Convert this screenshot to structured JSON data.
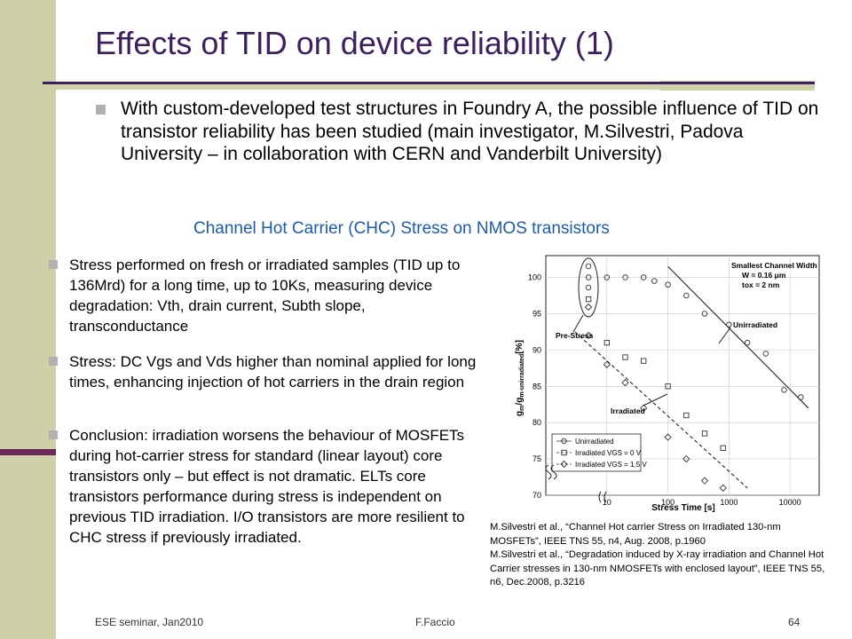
{
  "slide": {
    "title": "Effects of TID on device reliability (1)",
    "main_bullet": "With custom-developed test structures in Foundry A, the possible influence of TID on transistor reliability has been studied (main investigator, M.Silvestri, Padova University – in collaboration with CERN and Vanderbilt University)",
    "subheading": "Channel Hot Carrier (CHC) Stress on NMOS transistors",
    "points": [
      "Stress performed on fresh or irradiated samples (TID up to 136Mrd) for a long time, up to 10Ks, measuring device degradation: Vth, drain current, Subth slope, transconductance",
      "Stress: DC Vgs and Vds higher than nominal applied for long times, enhancing injection of hot carriers in the drain region",
      "Conclusion: irradiation worsens the behaviour of MOSFETs during hot-carrier stress for standard (linear layout) core transistors only – but effect is not dramatic. ELTs core transistors performance during stress is independent on previous TID irradiation. I/O transistors are more resilient to CHC stress if previously irradiated."
    ],
    "citation": [
      "M.Silvestri et al., “Channel Hot carrier Stress on Irradiated 130-nm MOSFETs”, IEEE TNS 55, n4, Aug. 2008, p.1960",
      "M.Silvestri et al., “Degradation induced by X-ray irradiation and Channel Hot Carrier stresses in 130-nm NMOSFETs with enclosed layout”, IEEE TNS 55, n6, Dec.2008, p.3216"
    ]
  },
  "footer": {
    "left": "ESE seminar, Jan2010",
    "center": "F.Faccio",
    "page": "64"
  },
  "chart_data": {
    "type": "scatter",
    "title": "",
    "xlabel": "Stress Time [s]",
    "ylabel": "gm/gm-unirradiated [%]",
    "xscale": "log",
    "xlim": [
      1,
      30000
    ],
    "ylim": [
      70,
      103
    ],
    "xticks": [
      "10",
      "100",
      "1000",
      "10000"
    ],
    "yticks": [
      "70",
      "75",
      "80",
      "85",
      "90",
      "95",
      "100"
    ],
    "info_box": [
      "Smallest Channel Width",
      "W = 0.16 μm",
      "tox = 2 nm"
    ],
    "annotations": [
      "Pre-Stress",
      "Unirradiated",
      "Irradiated"
    ],
    "legend": {
      "position": "bottom-left",
      "entries": [
        "Unirradiated",
        "Irradiated VGS = 0 V",
        "Irradiated VGS = 1.5 V"
      ]
    },
    "series": [
      {
        "name": "Unirradiated",
        "marker": "circle",
        "x": [
          5,
          10,
          20,
          40,
          60,
          100,
          200,
          400,
          1000,
          2000,
          4000,
          8000,
          15000
        ],
        "y": [
          100,
          100,
          100,
          100,
          99.5,
          99,
          97.5,
          95,
          93.5,
          91,
          89.5,
          84.5,
          83.5
        ]
      },
      {
        "name": "Irradiated VGS = 0 V",
        "marker": "square",
        "x": [
          5,
          10,
          20,
          40,
          100,
          200,
          400,
          800
        ],
        "y": [
          97,
          91,
          89,
          88.5,
          85,
          81,
          78.5,
          76.5
        ]
      },
      {
        "name": "Irradiated VGS = 1.5 V",
        "marker": "diamond",
        "x": [
          5,
          10,
          20,
          40,
          100,
          200,
          400,
          800
        ],
        "y": [
          92,
          88,
          85.5,
          82,
          78,
          75,
          72,
          71
        ]
      }
    ],
    "fit_lines": [
      {
        "name": "Unirradiated",
        "style": "solid",
        "x": [
          100,
          20000
        ],
        "y": [
          101.5,
          82
        ]
      },
      {
        "name": "Irradiated",
        "style": "dashed",
        "x": [
          3,
          2000
        ],
        "y": [
          92.5,
          71
        ]
      }
    ]
  }
}
